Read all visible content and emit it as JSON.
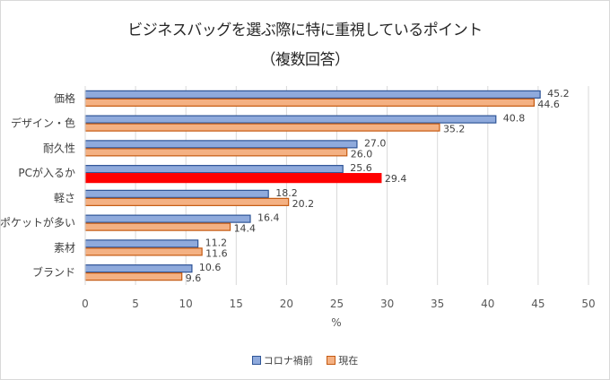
{
  "chart_data": {
    "type": "bar",
    "orientation": "horizontal",
    "title": "ビジネスバッグを選ぶ際に特に重視しているポイント",
    "subtitle": "（複数回答）",
    "xlabel": "%",
    "ylabel": "",
    "xlim": [
      0,
      50
    ],
    "xticks": [
      0,
      5,
      10,
      15,
      20,
      25,
      30,
      35,
      40,
      45,
      50
    ],
    "grid": true,
    "legend_position": "bottom",
    "categories": [
      "価格",
      "デザイン・色",
      "耐久性",
      "PCが入るか",
      "軽さ",
      "ポケットが多い",
      "素材",
      "ブランド"
    ],
    "series": [
      {
        "name": "コロナ禍前",
        "color": "#8faadc",
        "edge_color": "#2f5597",
        "values": [
          45.2,
          40.8,
          27.0,
          25.6,
          18.2,
          16.4,
          11.2,
          10.6
        ],
        "labels": [
          "45.2",
          "40.8",
          "27.0",
          "25.6",
          "18.2",
          "16.4",
          "11.2",
          "10.6"
        ]
      },
      {
        "name": "現在",
        "color": "#f4b183",
        "edge_color": "#c55a11",
        "values": [
          44.6,
          35.2,
          26.0,
          29.4,
          20.2,
          14.4,
          11.6,
          9.6
        ],
        "labels": [
          "44.6",
          "35.2",
          "26.0",
          "29.4",
          "20.2",
          "14.4",
          "11.6",
          "9.6"
        ],
        "highlight": {
          "index": 3,
          "color": "#ff0000"
        }
      }
    ]
  }
}
